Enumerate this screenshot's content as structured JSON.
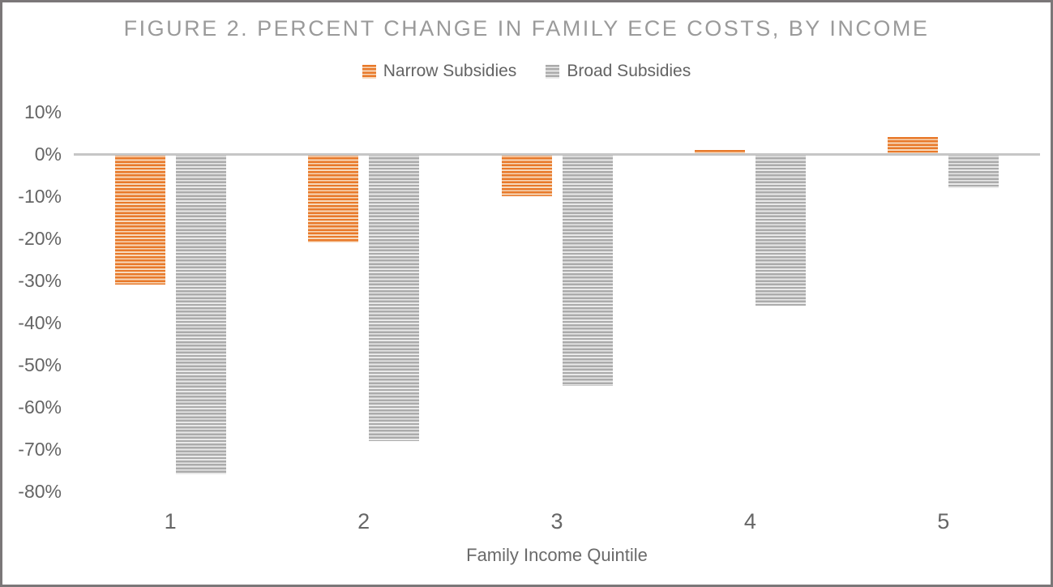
{
  "chart_data": {
    "type": "bar",
    "title": "FIGURE 2. PERCENT CHANGE IN FAMILY ECE COSTS, BY INCOME",
    "categories": [
      "1",
      "2",
      "3",
      "4",
      "5"
    ],
    "series": [
      {
        "name": "Narrow Subsidies",
        "values": [
          -31,
          -21,
          -10,
          1,
          4
        ],
        "color": "#E8792A",
        "stripe_light": "#F7D9BC"
      },
      {
        "name": "Broad Subsidies",
        "values": [
          -76,
          -68,
          -55,
          -36,
          -8
        ],
        "color": "#ABABAB",
        "stripe_light": "#E9E9E9"
      }
    ],
    "xlabel": "Family Income Quintile",
    "ylabel": "",
    "ylim": [
      -80,
      10
    ],
    "ytick_values": [
      10,
      0,
      -10,
      -20,
      -30,
      -40,
      -50,
      -60,
      -70,
      -80
    ],
    "ytick_labels": [
      "10%",
      "0%",
      "-10%",
      "-20%",
      "-30%",
      "-40%",
      "-50%",
      "-60%",
      "-70%",
      "-80%"
    ],
    "unit": "%",
    "legend_position": "top",
    "grid": false,
    "axis_line_color": "#C6C6C6",
    "title_color": "#9A9A9A",
    "tick_label_color": "#656565"
  }
}
